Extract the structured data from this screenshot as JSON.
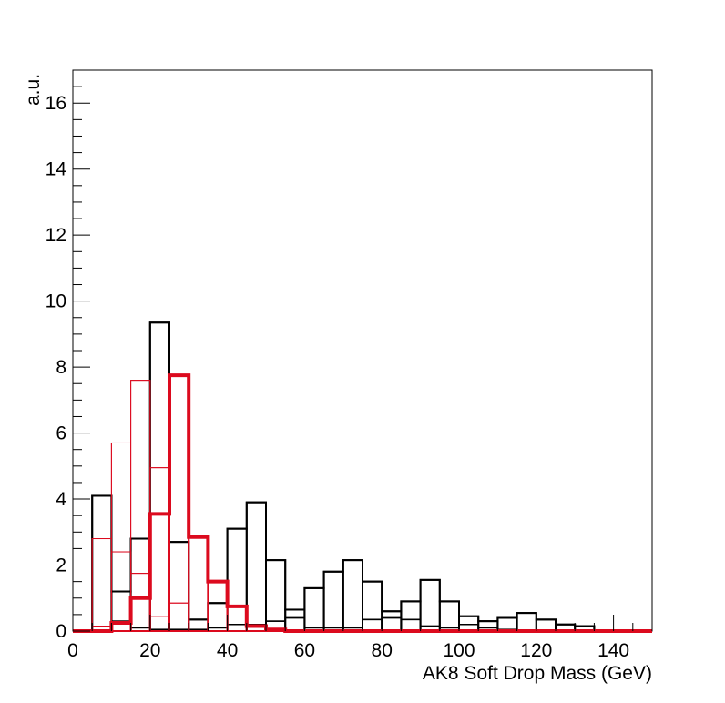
{
  "chart_data": {
    "type": "step-histogram",
    "title": "",
    "xlabel": "AK8 Soft Drop Mass (GeV)",
    "ylabel": "a.u.",
    "xlim": [
      0,
      150
    ],
    "ylim": [
      0,
      17
    ],
    "x_ticks": [
      0,
      20,
      40,
      60,
      80,
      100,
      120,
      140
    ],
    "y_ticks": [
      0,
      2,
      4,
      6,
      8,
      10,
      12,
      14,
      16
    ],
    "bin_edges": [
      0,
      5,
      10,
      15,
      20,
      25,
      30,
      35,
      40,
      45,
      50,
      55,
      60,
      65,
      70,
      75,
      80,
      85,
      90,
      95,
      100,
      105,
      110,
      115,
      120,
      125,
      130,
      135,
      140,
      145,
      150
    ],
    "series": [
      {
        "color": "#000000",
        "line_width": 2,
        "values": [
          0,
          4.1,
          1.2,
          2.8,
          9.35,
          2.7,
          0.35,
          0.85,
          3.1,
          3.9,
          2.15,
          0.65,
          1.3,
          1.8,
          2.15,
          1.5,
          0.6,
          0.9,
          1.55,
          0.9,
          0.45,
          0.3,
          0.4,
          0.55,
          0.35,
          0.2,
          0.15,
          0,
          0,
          0
        ]
      },
      {
        "color": "#000000",
        "line_width": 1.5,
        "values": [
          0,
          0,
          0.3,
          0.1,
          0.05,
          0.05,
          0.05,
          0.1,
          0.2,
          0.2,
          0.3,
          0.4,
          0.1,
          0.1,
          0.1,
          0.35,
          0.4,
          0.35,
          0.15,
          0.1,
          0.2,
          0.1,
          0.05,
          0,
          0,
          0,
          0,
          0,
          0,
          0
        ]
      },
      {
        "color": "#dc0a1e",
        "line_width": 1,
        "values": [
          0,
          2.8,
          5.7,
          7.6,
          0.45,
          0,
          0,
          0,
          0,
          0,
          0,
          0,
          0,
          0,
          0,
          0,
          0,
          0,
          0,
          0,
          0,
          0,
          0,
          0,
          0,
          0,
          0,
          0,
          0,
          0
        ]
      },
      {
        "color": "#dc0a1e",
        "line_width": 1,
        "values": [
          0,
          0.15,
          2.4,
          1.75,
          4.95,
          0.85,
          0,
          0,
          0,
          0,
          0,
          0,
          0,
          0,
          0,
          0,
          0,
          0,
          0,
          0,
          0,
          0,
          0,
          0,
          0,
          0,
          0,
          0,
          0,
          0
        ]
      },
      {
        "color": "#dc0a1e",
        "line_width": 4,
        "values": [
          0,
          0,
          0.25,
          1.0,
          3.55,
          7.75,
          2.85,
          1.5,
          0.75,
          0.15,
          0.05,
          0,
          0,
          0,
          0,
          0,
          0,
          0,
          0,
          0,
          0,
          0,
          0,
          0,
          0,
          0,
          0,
          0,
          0,
          0
        ]
      }
    ]
  }
}
